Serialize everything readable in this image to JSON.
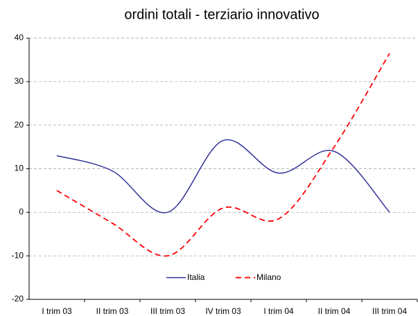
{
  "chart_data": {
    "type": "line",
    "title": "ordini totali - terziario innovativo",
    "categories": [
      "I trim 03",
      "II trim 03",
      "III trim 03",
      "IV trim 03",
      "I trim 04",
      "II trim 04",
      "III trim 04"
    ],
    "series": [
      {
        "name": "Italia",
        "color": "#333399",
        "dash": false,
        "values": [
          13,
          9.5,
          0,
          16.5,
          9,
          14,
          0
        ]
      },
      {
        "name": "Milano",
        "color": "#ff0000",
        "dash": true,
        "values": [
          5,
          -2.5,
          -10,
          1,
          -1.5,
          15,
          36.5
        ]
      }
    ],
    "ylim": [
      -20,
      40
    ],
    "yticks": [
      -20,
      -10,
      0,
      10,
      20,
      30,
      40
    ],
    "grid": true,
    "legend": "bottom"
  }
}
